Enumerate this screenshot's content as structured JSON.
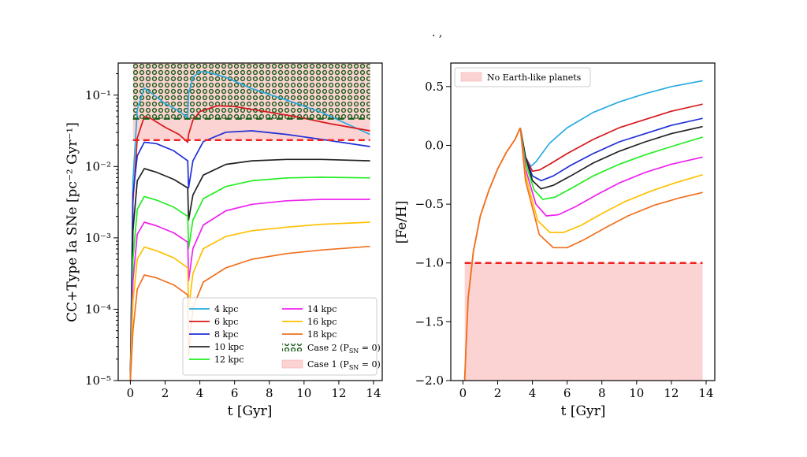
{
  "figure": {
    "title_fragment": ". ,",
    "colors": {
      "4 kpc": "#29abe2",
      "6 kpc": "#d7191c",
      "8 kpc": "#1f2fd6",
      "10 kpc": "#222222",
      "12 kpc": "#22ee22",
      "14 kpc": "#ee22ee",
      "16 kpc": "#ffc000",
      "18 kpc": "#f0701e",
      "threshold_red": "#ee2222",
      "threshold_green": "#1a5e1a",
      "band_fill": "#fcd3d3",
      "dots": "#1a5e1a"
    }
  },
  "chart_data": [
    {
      "id": "left",
      "type": "line",
      "yscale": "log",
      "xlabel": "t [Gyr]",
      "ylabel": "CC+Type Ia SNe [pc⁻² Gyr⁻¹]",
      "xlim": [
        -0.7,
        14.5
      ],
      "ylim_log10": [
        -5,
        -0.55
      ],
      "xticks": [
        0,
        2,
        4,
        6,
        8,
        10,
        12,
        14
      ],
      "xtick_labels": [
        "0",
        "2",
        "4",
        "6",
        "8",
        "10",
        "12",
        "14"
      ],
      "yticks_log10": [
        -5,
        -4,
        -3,
        -2,
        -1
      ],
      "ytick_labels": [
        "10⁻⁵",
        "10⁻⁴",
        "10⁻³",
        "10⁻²",
        "10⁻¹"
      ],
      "thresholds": {
        "case1_log10": -1.63,
        "case2_log10": -1.33
      },
      "case1_band_log10": [
        -1.63,
        -0.55
      ],
      "case2_band_log10": [
        -1.33,
        -0.55
      ],
      "case_band_x": [
        0.15,
        13.8
      ],
      "series": [
        {
          "name": "4 kpc",
          "x": [
            0,
            0.15,
            0.4,
            0.8,
            1.2,
            2.0,
            2.8,
            3.3,
            3.35,
            3.6,
            4.0,
            4.5,
            5.5,
            7,
            9,
            11,
            13.8
          ],
          "y_log10": [
            -5,
            -2.2,
            -1.2,
            -0.9,
            -0.97,
            -1.12,
            -1.22,
            -1.32,
            -0.98,
            -0.75,
            -0.67,
            -0.68,
            -0.75,
            -0.91,
            -1.07,
            -1.24,
            -1.55
          ]
        },
        {
          "name": "6 kpc",
          "x": [
            0,
            0.15,
            0.4,
            0.8,
            1.2,
            2.0,
            2.8,
            3.3,
            3.35,
            3.6,
            4.0,
            5.0,
            6.0,
            7.5,
            9.5,
            11.5,
            13.8
          ],
          "y_log10": [
            -5,
            -2.5,
            -1.6,
            -1.3,
            -1.33,
            -1.45,
            -1.55,
            -1.66,
            -1.55,
            -1.35,
            -1.23,
            -1.15,
            -1.16,
            -1.22,
            -1.3,
            -1.4,
            -1.5
          ]
        },
        {
          "name": "8 kpc",
          "x": [
            0,
            0.15,
            0.4,
            0.8,
            1.5,
            2.5,
            3.3,
            3.35,
            3.6,
            4.2,
            5.5,
            7,
            9,
            11,
            13.8
          ],
          "y_log10": [
            -5,
            -2.4,
            -1.85,
            -1.66,
            -1.68,
            -1.78,
            -1.92,
            -2.3,
            -1.92,
            -1.65,
            -1.52,
            -1.5,
            -1.55,
            -1.62,
            -1.72
          ]
        },
        {
          "name": "10 kpc",
          "x": [
            0,
            0.15,
            0.4,
            0.8,
            1.5,
            2.5,
            3.3,
            3.35,
            3.6,
            4.2,
            5.5,
            7,
            9,
            11,
            13.8
          ],
          "y_log10": [
            -5,
            -2.9,
            -2.2,
            -2.03,
            -2.08,
            -2.18,
            -2.3,
            -2.75,
            -2.4,
            -2.12,
            -1.97,
            -1.92,
            -1.9,
            -1.9,
            -1.92
          ]
        },
        {
          "name": "12 kpc",
          "x": [
            0,
            0.15,
            0.4,
            0.8,
            1.5,
            2.5,
            3.3,
            3.35,
            3.6,
            4.2,
            5.5,
            7,
            9,
            11,
            13.8
          ],
          "y_log10": [
            -5,
            -3.3,
            -2.6,
            -2.42,
            -2.47,
            -2.57,
            -2.7,
            -3.15,
            -2.75,
            -2.45,
            -2.28,
            -2.2,
            -2.16,
            -2.15,
            -2.16
          ]
        },
        {
          "name": "14 kpc",
          "x": [
            0,
            0.15,
            0.4,
            0.8,
            1.5,
            2.5,
            3.3,
            3.35,
            3.6,
            4.2,
            5.5,
            7,
            9,
            11,
            13.8
          ],
          "y_log10": [
            -5,
            -3.6,
            -2.95,
            -2.78,
            -2.83,
            -2.93,
            -3.06,
            -3.6,
            -3.15,
            -2.82,
            -2.62,
            -2.53,
            -2.48,
            -2.46,
            -2.46
          ]
        },
        {
          "name": "16 kpc",
          "x": [
            0,
            0.15,
            0.4,
            0.8,
            1.5,
            2.5,
            3.3,
            3.35,
            3.6,
            4.2,
            5.5,
            7,
            9,
            11,
            13.8
          ],
          "y_log10": [
            -5,
            -3.9,
            -3.3,
            -3.13,
            -3.18,
            -3.28,
            -3.42,
            -4.0,
            -3.5,
            -3.15,
            -2.98,
            -2.9,
            -2.85,
            -2.81,
            -2.78
          ]
        },
        {
          "name": "18 kpc",
          "x": [
            0,
            0.15,
            0.4,
            0.8,
            1.5,
            2.5,
            3.3,
            3.35,
            3.6,
            4.2,
            5.5,
            7,
            9,
            11,
            13.8
          ],
          "y_log10": [
            -5,
            -4.3,
            -3.72,
            -3.52,
            -3.56,
            -3.66,
            -3.8,
            -4.65,
            -3.98,
            -3.62,
            -3.42,
            -3.3,
            -3.22,
            -3.17,
            -3.12
          ]
        }
      ],
      "legend": {
        "placement": "lower-right",
        "entries": [
          "4 kpc",
          "6 kpc",
          "8 kpc",
          "10 kpc",
          "12 kpc",
          "14 kpc",
          "16 kpc",
          "18 kpc"
        ],
        "case2_label": "Case 2 (P",
        "case2_sub": "SN",
        "case2_tail": " = 0)",
        "case1_label": "Case 1 (P",
        "case1_sub": "SN",
        "case1_tail": " = 0)"
      }
    },
    {
      "id": "right",
      "type": "line",
      "xlabel": "t [Gyr]",
      "ylabel": "[Fe/H]",
      "xlim": [
        -0.7,
        14.5
      ],
      "ylim": [
        -2.0,
        0.7
      ],
      "xticks": [
        0,
        2,
        4,
        6,
        8,
        10,
        12,
        14
      ],
      "xtick_labels": [
        "0",
        "2",
        "4",
        "6",
        "8",
        "10",
        "12",
        "14"
      ],
      "yticks": [
        0.5,
        0.0,
        -0.5,
        -1.0,
        -1.5,
        -2.0
      ],
      "ytick_labels": [
        "0.5",
        "0.0",
        "−0.5",
        "−1.0",
        "−1.5",
        "−2.0"
      ],
      "threshold": -1.0,
      "no_earth_band": [
        -2.0,
        -1.0
      ],
      "no_earth_x": [
        0.1,
        13.8
      ],
      "rise": {
        "x": [
          0.1,
          0.3,
          0.6,
          1.0,
          1.5,
          2.0,
          2.5,
          3.0,
          3.3
        ],
        "y": [
          -2.0,
          -1.3,
          -0.9,
          -0.6,
          -0.38,
          -0.2,
          -0.06,
          0.05,
          0.15
        ]
      },
      "series": [
        {
          "name": "4 kpc",
          "x": [
            3.3,
            3.6,
            3.9,
            4.2,
            5,
            6,
            7.5,
            9,
            10.5,
            12,
            13.8
          ],
          "y": [
            0.15,
            -0.1,
            -0.18,
            -0.14,
            0.02,
            0.15,
            0.28,
            0.37,
            0.44,
            0.5,
            0.55
          ]
        },
        {
          "name": "6 kpc",
          "x": [
            3.3,
            3.6,
            4.0,
            4.4,
            5,
            6,
            7.5,
            9,
            10.5,
            12,
            13.8
          ],
          "y": [
            0.15,
            -0.1,
            -0.22,
            -0.21,
            -0.16,
            -0.07,
            0.05,
            0.15,
            0.22,
            0.29,
            0.35
          ]
        },
        {
          "name": "8 kpc",
          "x": [
            3.3,
            3.6,
            4.0,
            4.5,
            5.2,
            6.2,
            7.5,
            9,
            10.5,
            12,
            13.8
          ],
          "y": [
            0.15,
            -0.1,
            -0.26,
            -0.3,
            -0.26,
            -0.17,
            -0.07,
            0.03,
            0.1,
            0.17,
            0.23
          ]
        },
        {
          "name": "10 kpc",
          "x": [
            3.3,
            3.6,
            4.0,
            4.5,
            5.2,
            6.2,
            7.5,
            9,
            10.5,
            12,
            13.8
          ],
          "y": [
            0.15,
            -0.1,
            -0.3,
            -0.37,
            -0.34,
            -0.26,
            -0.15,
            -0.05,
            0.03,
            0.1,
            0.16
          ]
        },
        {
          "name": "12 kpc",
          "x": [
            3.3,
            3.6,
            4.1,
            4.6,
            5.3,
            6.3,
            7.5,
            9,
            10.5,
            12,
            13.8
          ],
          "y": [
            0.15,
            -0.15,
            -0.38,
            -0.46,
            -0.44,
            -0.36,
            -0.26,
            -0.16,
            -0.08,
            -0.01,
            0.07
          ]
        },
        {
          "name": "14 kpc",
          "x": [
            3.3,
            3.6,
            4.2,
            4.8,
            5.5,
            6.5,
            7.7,
            9,
            10.5,
            12,
            13.8
          ],
          "y": [
            0.15,
            -0.2,
            -0.5,
            -0.6,
            -0.59,
            -0.52,
            -0.42,
            -0.32,
            -0.23,
            -0.16,
            -0.1
          ]
        },
        {
          "name": "16 kpc",
          "x": [
            3.3,
            3.6,
            4.3,
            5.0,
            5.8,
            6.8,
            8,
            9.3,
            10.8,
            12.2,
            13.8
          ],
          "y": [
            0.15,
            -0.25,
            -0.64,
            -0.74,
            -0.74,
            -0.68,
            -0.58,
            -0.48,
            -0.39,
            -0.32,
            -0.25
          ]
        },
        {
          "name": "18 kpc",
          "x": [
            3.3,
            3.6,
            4.4,
            5.2,
            6.0,
            7.0,
            8.2,
            9.5,
            11,
            12.4,
            13.8
          ],
          "y": [
            0.15,
            -0.3,
            -0.76,
            -0.87,
            -0.87,
            -0.8,
            -0.7,
            -0.6,
            -0.51,
            -0.45,
            -0.4
          ]
        }
      ],
      "legend": {
        "placement": "top-left",
        "label": "No Earth-like planets"
      }
    }
  ]
}
